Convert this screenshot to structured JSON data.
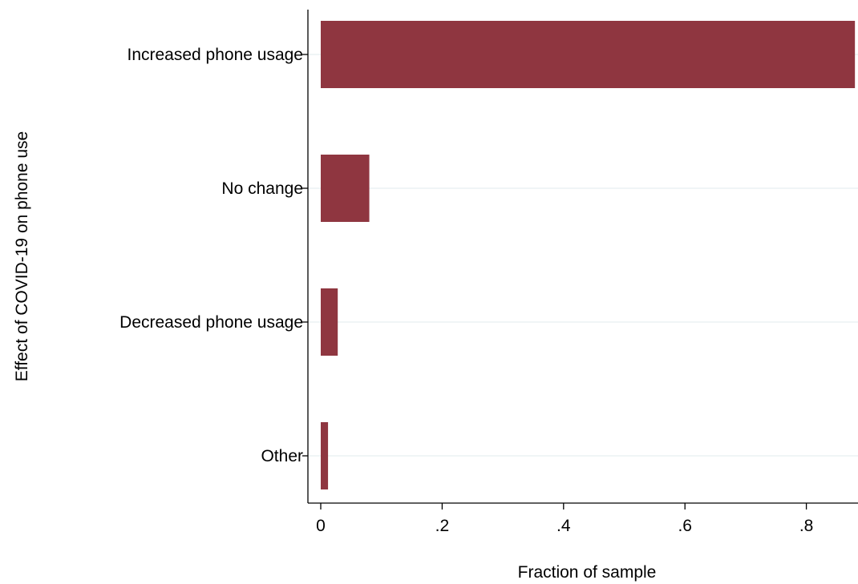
{
  "chart_data": {
    "type": "bar",
    "orientation": "horizontal",
    "categories": [
      "Increased phone usage",
      "No change",
      "Decreased phone usage",
      "Other"
    ],
    "values": [
      0.88,
      0.08,
      0.028,
      0.012
    ],
    "xlabel": "Fraction of sample",
    "ylabel": "Effect of COVID-19 on phone use",
    "xlim": [
      0,
      0.88
    ],
    "xticks": [
      0,
      0.2,
      0.4,
      0.6,
      0.8
    ],
    "xtick_labels": [
      "0",
      ".2",
      ".4",
      ".6",
      ".8"
    ],
    "grid": true,
    "bar_color": "#8f3640",
    "grid_color": "#e8eff1"
  }
}
